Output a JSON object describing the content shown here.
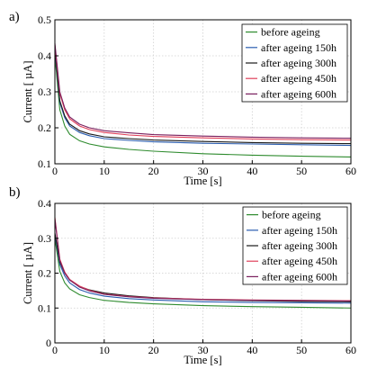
{
  "chart_data": [
    {
      "panel_label": "a)",
      "type": "line",
      "xlabel": "Time [s]",
      "ylabel": "Current [ µA]",
      "xlim": [
        0,
        60
      ],
      "ylim": [
        0.1,
        0.5
      ],
      "xticks": [
        0,
        10,
        20,
        30,
        40,
        50,
        60
      ],
      "yticks": [
        0.1,
        0.2,
        0.3,
        0.4,
        0.5
      ],
      "ytick_labels": [
        "0.1",
        "0.2",
        "0.3",
        "0.4",
        "0.5"
      ],
      "grid": true,
      "legend_position": "top-right",
      "x": [
        0,
        1,
        2,
        3,
        5,
        7,
        10,
        15,
        20,
        30,
        40,
        50,
        60
      ],
      "series": [
        {
          "name": "before ageing",
          "color": "#2e8b2e",
          "values": [
            0.4,
            0.25,
            0.205,
            0.182,
            0.164,
            0.155,
            0.147,
            0.14,
            0.135,
            0.128,
            0.124,
            0.121,
            0.119
          ]
        },
        {
          "name": "after ageing 150h",
          "color": "#2a5db0",
          "values": [
            0.415,
            0.27,
            0.228,
            0.205,
            0.187,
            0.178,
            0.17,
            0.165,
            0.161,
            0.157,
            0.155,
            0.153,
            0.151
          ]
        },
        {
          "name": "after ageing 300h",
          "color": "#1a1a1a",
          "values": [
            0.42,
            0.275,
            0.233,
            0.21,
            0.192,
            0.183,
            0.175,
            0.17,
            0.166,
            0.162,
            0.159,
            0.157,
            0.156
          ]
        },
        {
          "name": "after ageing 450h",
          "color": "#e0405a",
          "values": [
            0.43,
            0.295,
            0.25,
            0.225,
            0.205,
            0.195,
            0.187,
            0.18,
            0.176,
            0.172,
            0.169,
            0.167,
            0.166
          ]
        },
        {
          "name": "after ageing 600h",
          "color": "#7a1f5e",
          "values": [
            0.435,
            0.3,
            0.255,
            0.23,
            0.21,
            0.2,
            0.192,
            0.186,
            0.181,
            0.177,
            0.174,
            0.172,
            0.171
          ]
        }
      ]
    },
    {
      "panel_label": "b)",
      "type": "line",
      "xlabel": "Time [s]",
      "ylabel": "Current [ µA]",
      "xlim": [
        0,
        60
      ],
      "ylim": [
        0,
        0.4
      ],
      "xticks": [
        0,
        10,
        20,
        30,
        40,
        50,
        60
      ],
      "yticks": [
        0,
        0.1,
        0.2,
        0.3,
        0.4
      ],
      "ytick_labels": [
        "0",
        "0.1",
        "0.2",
        "0.3",
        "0.4"
      ],
      "grid": true,
      "legend_position": "top-right",
      "x": [
        0,
        1,
        2,
        3,
        5,
        7,
        10,
        15,
        20,
        30,
        40,
        50,
        60
      ],
      "series": [
        {
          "name": "before ageing",
          "color": "#2e8b2e",
          "values": [
            0.3,
            0.205,
            0.172,
            0.155,
            0.138,
            0.13,
            0.122,
            0.116,
            0.112,
            0.107,
            0.104,
            0.102,
            0.1
          ]
        },
        {
          "name": "after ageing 150h",
          "color": "#2a5db0",
          "values": [
            0.31,
            0.225,
            0.192,
            0.172,
            0.153,
            0.143,
            0.134,
            0.127,
            0.123,
            0.118,
            0.116,
            0.115,
            0.114
          ]
        },
        {
          "name": "after ageing 300h",
          "color": "#1a1a1a",
          "values": [
            0.315,
            0.232,
            0.2,
            0.18,
            0.162,
            0.152,
            0.143,
            0.135,
            0.13,
            0.124,
            0.121,
            0.119,
            0.118
          ]
        },
        {
          "name": "after ageing 450h",
          "color": "#e0405a",
          "values": [
            0.36,
            0.24,
            0.203,
            0.182,
            0.163,
            0.151,
            0.14,
            0.133,
            0.129,
            0.125,
            0.123,
            0.122,
            0.121
          ]
        },
        {
          "name": "after ageing 600h",
          "color": "#7a1f5e",
          "values": [
            0.355,
            0.236,
            0.2,
            0.18,
            0.16,
            0.149,
            0.139,
            0.132,
            0.128,
            0.124,
            0.122,
            0.121,
            0.12
          ]
        }
      ]
    }
  ]
}
